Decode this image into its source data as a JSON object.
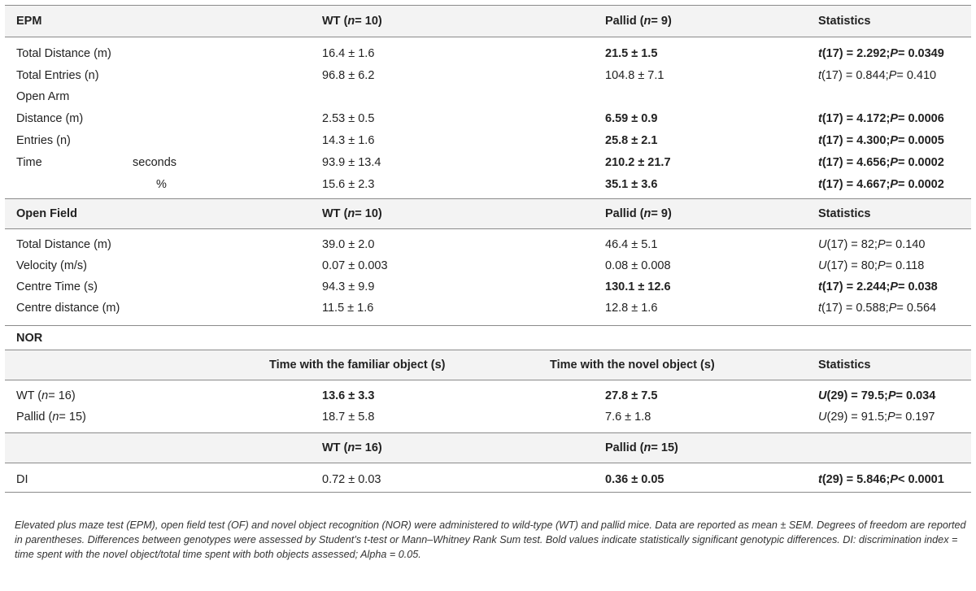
{
  "epm": {
    "title": "EPM",
    "col_wt": "WT (",
    "col_pallid": "Pallid (",
    "n_wt": "n",
    "n_wt_val": " = 10)",
    "n_pal_val": " = 9)",
    "col_stats": "Statistics",
    "rows": {
      "total_distance": {
        "label": "Total Distance (m)",
        "wt": "16.4 ± 1.6",
        "pallid": "21.5 ± 1.5",
        "stat_a": "t",
        "stat_b": "(17) = 2.292; ",
        "stat_c": "P",
        "stat_d": " = 0.0349"
      },
      "total_entries": {
        "label": "Total Entries (n)",
        "wt": "96.8 ± 6.2",
        "pallid": "104.8 ± 7.1",
        "stat_a": "t",
        "stat_b": "(17) = 0.844; ",
        "stat_c": "P",
        "stat_d": " = 0.410"
      },
      "open_arm": {
        "label": "Open Arm"
      },
      "distance": {
        "label": "Distance (m)",
        "wt": "2.53 ± 0.5",
        "pallid": "6.59 ± 0.9",
        "stat_a": "t",
        "stat_b": "(17) = 4.172; ",
        "stat_c": "P",
        "stat_d": " = 0.0006"
      },
      "entries": {
        "label": "Entries (n)",
        "wt": "14.3 ± 1.6",
        "pallid": "25.8 ± 2.1",
        "stat_a": "t",
        "stat_b": "(17) = 4.300; ",
        "stat_c": "P",
        "stat_d": " = 0.0005"
      },
      "time_seconds": {
        "label": "Time",
        "sub": "seconds",
        "wt": "93.9 ± 13.4",
        "pallid": "210.2 ± 21.7",
        "stat_a": "t",
        "stat_b": "(17) = 4.656; ",
        "stat_c": "P",
        "stat_d": " = 0.0002"
      },
      "time_pct": {
        "sub": "%",
        "wt": "15.6 ± 2.3",
        "pallid": "35.1 ± 3.6",
        "stat_a": "t",
        "stat_b": "(17) = 4.667; ",
        "stat_c": "P",
        "stat_d": " = 0.0002"
      }
    }
  },
  "of": {
    "title": "Open Field",
    "rows": {
      "total_distance": {
        "label": "Total Distance (m)",
        "wt": "39.0 ± 2.0",
        "pallid": "46.4 ± 5.1",
        "stat_a": "U",
        "stat_b": "(17) = 82; ",
        "stat_c": "P",
        "stat_d": " = 0.140"
      },
      "velocity": {
        "label": "Velocity (m/s)",
        "wt": "0.07 ± 0.003",
        "pallid": "0.08 ± 0.008",
        "stat_a": "U",
        "stat_b": "(17) = 80; ",
        "stat_c": "P",
        "stat_d": " = 0.118"
      },
      "centre_time": {
        "label": "Centre Time (s)",
        "wt": "94.3 ± 9.9",
        "pallid": "130.1 ± 12.6",
        "stat_a": "t",
        "stat_b": "(17) = 2.244; ",
        "stat_c": "P",
        "stat_d": " = 0.038"
      },
      "centre_distance": {
        "label": "Centre distance (m)",
        "wt": "11.5 ± 1.6",
        "pallid": "12.8 ± 1.6",
        "stat_a": "t",
        "stat_b": "(17) = 0.588; ",
        "stat_c": "P",
        "stat_d": " = 0.564"
      }
    }
  },
  "nor": {
    "title": "NOR",
    "col_familiar": "Time with the familiar object (s)",
    "col_novel": "Time with the novel object (s)",
    "col_stats": "Statistics",
    "wt_label": "WT (",
    "wt_n": " = 16)",
    "pallid_label": "Pallid (",
    "pallid_n": " = 15)",
    "wt_row": {
      "familiar": "13.6 ± 3.3",
      "novel": "27.8 ± 7.5",
      "stat_a": "U",
      "stat_b": "(29) = 79.5; ",
      "stat_c": "P",
      "stat_d": " = 0.034"
    },
    "pallid_row": {
      "familiar": "18.7 ± 5.8",
      "novel": "7.6 ± 1.8",
      "stat_a": "U",
      "stat_b": "(29) = 91.5; ",
      "stat_c": "P",
      "stat_d": " = 0.197"
    },
    "di_header_wt": "WT (",
    "di_header_wt_n": " = 16)",
    "di_header_pal": "Pallid (",
    "di_header_pal_n": " = 15)",
    "di_row": {
      "label": "DI",
      "wt": "0.72 ± 0.03",
      "pallid": "0.36 ± 0.05",
      "stat_a": "t",
      "stat_b": "(29) = 5.846; ",
      "stat_c": "P",
      "stat_d": " < 0.0001"
    }
  },
  "caption": "Elevated plus maze test (EPM), open field test (OF) and novel object recognition (NOR) were administered to wild-type (WT) and pallid mice. Data are reported as mean ± SEM. Degrees of freedom are reported in parentheses. Differences between genotypes were assessed by Student’s t-test or Mann–Whitney Rank Sum test. Bold values indicate statistically significant genotypic differences. DI: discrimination index = time spent with the novel object/total time spent with both objects assessed; Alpha = 0.05."
}
